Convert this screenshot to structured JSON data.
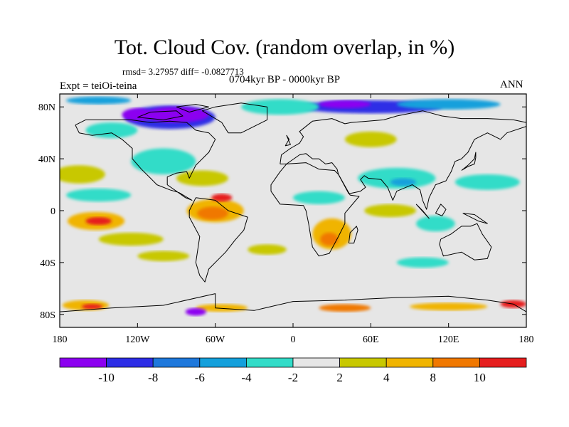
{
  "title": "Tot. Cloud Cov. (random overlap, in %)",
  "stats": "rmsd= 3.27957 diff= -0.0827713",
  "period": "0704kyr BP - 0000kyr BP",
  "experiment": "Expt = teiOi-teina",
  "season": "ANN",
  "map": {
    "lon_range": [
      -180,
      180
    ],
    "lat_range": [
      -90,
      90
    ],
    "x_ticks": [
      "180",
      "120W",
      "60W",
      "0",
      "60E",
      "120E",
      "180"
    ],
    "y_ticks": [
      "80N",
      "40N",
      "0",
      "40S",
      "80S"
    ],
    "background_color": "#e6e6e6",
    "coastline_color": "#000000"
  },
  "colorbar": {
    "labels": [
      "-10",
      "-8",
      "-6",
      "-4",
      "-2",
      "2",
      "4",
      "8",
      "10"
    ],
    "colors": [
      "#8c00f0",
      "#2d2de6",
      "#1e78dc",
      "#14a0dc",
      "#32dcc8",
      "#e6e6e6",
      "#c8c800",
      "#f0b400",
      "#f07800",
      "#e61e1e"
    ]
  },
  "anomaly_regions": [
    {
      "lon": -95,
      "lat": 72,
      "rx": 35,
      "ry": 9,
      "color": "#2d2de6"
    },
    {
      "lon": -90,
      "lat": 74,
      "rx": 25,
      "ry": 6,
      "color": "#8c00f0"
    },
    {
      "lon": -120,
      "lat": 74,
      "rx": 12,
      "ry": 5,
      "color": "#8c00f0"
    },
    {
      "lon": 60,
      "lat": 80,
      "rx": 55,
      "ry": 5,
      "color": "#2d2de6"
    },
    {
      "lon": 40,
      "lat": 82,
      "rx": 20,
      "ry": 3,
      "color": "#8c00f0"
    },
    {
      "lon": -10,
      "lat": 80,
      "rx": 30,
      "ry": 6,
      "color": "#32dcc8"
    },
    {
      "lon": 120,
      "lat": 82,
      "rx": 40,
      "ry": 4,
      "color": "#14a0dc"
    },
    {
      "lon": -150,
      "lat": 85,
      "rx": 25,
      "ry": 3,
      "color": "#14a0dc"
    },
    {
      "lon": -140,
      "lat": 62,
      "rx": 20,
      "ry": 6,
      "color": "#32dcc8"
    },
    {
      "lon": 60,
      "lat": 55,
      "rx": 20,
      "ry": 6,
      "color": "#c8c800"
    },
    {
      "lon": -165,
      "lat": 28,
      "rx": 20,
      "ry": 7,
      "color": "#c8c800"
    },
    {
      "lon": -150,
      "lat": 12,
      "rx": 25,
      "ry": 5,
      "color": "#32dcc8"
    },
    {
      "lon": -100,
      "lat": 38,
      "rx": 25,
      "ry": 10,
      "color": "#32dcc8"
    },
    {
      "lon": -70,
      "lat": 25,
      "rx": 20,
      "ry": 6,
      "color": "#c8c800"
    },
    {
      "lon": -60,
      "lat": 0,
      "rx": 22,
      "ry": 9,
      "color": "#f0b400"
    },
    {
      "lon": -62,
      "lat": -2,
      "rx": 12,
      "ry": 5,
      "color": "#f07800"
    },
    {
      "lon": -55,
      "lat": 10,
      "rx": 8,
      "ry": 3,
      "color": "#e61e1e"
    },
    {
      "lon": -152,
      "lat": -8,
      "rx": 22,
      "ry": 7,
      "color": "#f0b400"
    },
    {
      "lon": -150,
      "lat": -8,
      "rx": 10,
      "ry": 3,
      "color": "#e61e1e"
    },
    {
      "lon": -125,
      "lat": -22,
      "rx": 25,
      "ry": 5,
      "color": "#c8c800"
    },
    {
      "lon": 30,
      "lat": -18,
      "rx": 15,
      "ry": 12,
      "color": "#f0b400"
    },
    {
      "lon": 28,
      "lat": -22,
      "rx": 7,
      "ry": 5,
      "color": "#f07800"
    },
    {
      "lon": 20,
      "lat": 10,
      "rx": 20,
      "ry": 5,
      "color": "#32dcc8"
    },
    {
      "lon": 80,
      "lat": 25,
      "rx": 30,
      "ry": 8,
      "color": "#32dcc8"
    },
    {
      "lon": 85,
      "lat": 22,
      "rx": 10,
      "ry": 3,
      "color": "#14a0dc"
    },
    {
      "lon": 150,
      "lat": 22,
      "rx": 25,
      "ry": 6,
      "color": "#32dcc8"
    },
    {
      "lon": 75,
      "lat": 0,
      "rx": 20,
      "ry": 5,
      "color": "#c8c800"
    },
    {
      "lon": 110,
      "lat": -10,
      "rx": 15,
      "ry": 6,
      "color": "#32dcc8"
    },
    {
      "lon": -100,
      "lat": -35,
      "rx": 20,
      "ry": 4,
      "color": "#c8c800"
    },
    {
      "lon": -20,
      "lat": -30,
      "rx": 15,
      "ry": 4,
      "color": "#c8c800"
    },
    {
      "lon": 100,
      "lat": -40,
      "rx": 20,
      "ry": 4,
      "color": "#32dcc8"
    },
    {
      "lon": -160,
      "lat": -73,
      "rx": 18,
      "ry": 4,
      "color": "#f0b400"
    },
    {
      "lon": -155,
      "lat": -74,
      "rx": 8,
      "ry": 2,
      "color": "#e61e1e"
    },
    {
      "lon": -55,
      "lat": -75,
      "rx": 20,
      "ry": 3,
      "color": "#f0b400"
    },
    {
      "lon": -75,
      "lat": -78,
      "rx": 8,
      "ry": 3,
      "color": "#8c00f0"
    },
    {
      "lon": 40,
      "lat": -75,
      "rx": 20,
      "ry": 3,
      "color": "#f07800"
    },
    {
      "lon": 120,
      "lat": -74,
      "rx": 30,
      "ry": 3,
      "color": "#f0b400"
    },
    {
      "lon": 170,
      "lat": -72,
      "rx": 10,
      "ry": 3,
      "color": "#e61e1e"
    }
  ],
  "coastlines": [
    [
      [
        -168,
        66
      ],
      [
        -160,
        70
      ],
      [
        -140,
        70
      ],
      [
        -125,
        70
      ],
      [
        -110,
        68
      ],
      [
        -95,
        69
      ],
      [
        -82,
        68
      ],
      [
        -75,
        62
      ],
      [
        -65,
        60
      ],
      [
        -60,
        55
      ],
      [
        -65,
        45
      ],
      [
        -75,
        35
      ],
      [
        -80,
        25
      ],
      [
        -82,
        30
      ],
      [
        -90,
        29
      ],
      [
        -97,
        26
      ],
      [
        -97,
        20
      ],
      [
        -90,
        15
      ],
      [
        -83,
        10
      ],
      [
        -78,
        8
      ],
      [
        -88,
        14
      ],
      [
        -95,
        16
      ],
      [
        -105,
        20
      ],
      [
        -110,
        25
      ],
      [
        -117,
        32
      ],
      [
        -124,
        40
      ],
      [
        -124,
        48
      ],
      [
        -132,
        55
      ],
      [
        -140,
        60
      ],
      [
        -155,
        58
      ],
      [
        -165,
        60
      ],
      [
        -168,
        66
      ]
    ],
    [
      [
        -75,
        10
      ],
      [
        -60,
        8
      ],
      [
        -50,
        0
      ],
      [
        -35,
        -5
      ],
      [
        -38,
        -15
      ],
      [
        -45,
        -23
      ],
      [
        -52,
        -32
      ],
      [
        -58,
        -38
      ],
      [
        -65,
        -45
      ],
      [
        -68,
        -55
      ],
      [
        -72,
        -50
      ],
      [
        -75,
        -40
      ],
      [
        -72,
        -20
      ],
      [
        -80,
        -5
      ],
      [
        -80,
        0
      ],
      [
        -75,
        10
      ]
    ],
    [
      [
        -50,
        60
      ],
      [
        -40,
        60
      ],
      [
        -20,
        70
      ],
      [
        -20,
        80
      ],
      [
        -40,
        83
      ],
      [
        -60,
        80
      ],
      [
        -70,
        77
      ],
      [
        -55,
        68
      ],
      [
        -50,
        60
      ]
    ],
    [
      [
        -17,
        15
      ],
      [
        -10,
        5
      ],
      [
        8,
        4
      ],
      [
        10,
        0
      ],
      [
        12,
        -10
      ],
      [
        15,
        -28
      ],
      [
        20,
        -35
      ],
      [
        28,
        -33
      ],
      [
        35,
        -20
      ],
      [
        40,
        -10
      ],
      [
        40,
        -2
      ],
      [
        51,
        11
      ],
      [
        44,
        12
      ],
      [
        35,
        28
      ],
      [
        32,
        31
      ],
      [
        20,
        32
      ],
      [
        10,
        37
      ],
      [
        -5,
        36
      ],
      [
        -10,
        30
      ],
      [
        -17,
        20
      ],
      [
        -17,
        15
      ]
    ],
    [
      [
        -10,
        36
      ],
      [
        -9,
        43
      ],
      [
        -2,
        48
      ],
      [
        5,
        52
      ],
      [
        8,
        57
      ],
      [
        5,
        61
      ],
      [
        15,
        69
      ],
      [
        30,
        71
      ],
      [
        40,
        67
      ],
      [
        45,
        68
      ],
      [
        70,
        70
      ],
      [
        80,
        73
      ],
      [
        100,
        77
      ],
      [
        115,
        73
      ],
      [
        130,
        71
      ],
      [
        150,
        71
      ],
      [
        170,
        70
      ],
      [
        180,
        68
      ],
      [
        180,
        65
      ],
      [
        165,
        60
      ],
      [
        160,
        55
      ],
      [
        150,
        60
      ],
      [
        140,
        55
      ],
      [
        135,
        45
      ],
      [
        130,
        40
      ],
      [
        125,
        38
      ],
      [
        122,
        30
      ],
      [
        118,
        23
      ],
      [
        110,
        20
      ],
      [
        105,
        10
      ],
      [
        103,
        1
      ],
      [
        100,
        8
      ],
      [
        98,
        16
      ],
      [
        92,
        20
      ],
      [
        80,
        15
      ],
      [
        77,
        8
      ],
      [
        73,
        18
      ],
      [
        68,
        24
      ],
      [
        58,
        25
      ],
      [
        55,
        27
      ],
      [
        52,
        24
      ],
      [
        56,
        18
      ],
      [
        52,
        15
      ],
      [
        43,
        13
      ],
      [
        35,
        28
      ],
      [
        34,
        32
      ],
      [
        30,
        37
      ],
      [
        25,
        36
      ],
      [
        20,
        40
      ],
      [
        15,
        40
      ],
      [
        10,
        44
      ],
      [
        5,
        43
      ],
      [
        -5,
        36
      ],
      [
        -10,
        36
      ]
    ],
    [
      [
        114,
        -22
      ],
      [
        122,
        -18
      ],
      [
        130,
        -12
      ],
      [
        137,
        -12
      ],
      [
        142,
        -10
      ],
      [
        146,
        -18
      ],
      [
        153,
        -28
      ],
      [
        150,
        -37
      ],
      [
        140,
        -38
      ],
      [
        130,
        -32
      ],
      [
        116,
        -35
      ],
      [
        113,
        -26
      ],
      [
        114,
        -22
      ]
    ],
    [
      [
        -180,
        -78
      ],
      [
        -140,
        -75
      ],
      [
        -100,
        -73
      ],
      [
        -60,
        -64
      ],
      [
        -60,
        -75
      ],
      [
        -30,
        -77
      ],
      [
        0,
        -70
      ],
      [
        40,
        -69
      ],
      [
        80,
        -67
      ],
      [
        120,
        -66
      ],
      [
        150,
        -69
      ],
      [
        170,
        -72
      ],
      [
        180,
        -78
      ]
    ],
    [
      [
        -6,
        50
      ],
      [
        -3,
        55
      ],
      [
        -5,
        58
      ],
      [
        -2,
        51
      ],
      [
        -6,
        50
      ]
    ],
    [
      [
        130,
        31
      ],
      [
        135,
        34
      ],
      [
        140,
        36
      ],
      [
        141,
        41
      ],
      [
        141,
        45
      ],
      [
        140,
        40
      ],
      [
        135,
        35
      ],
      [
        130,
        31
      ]
    ],
    [
      [
        43,
        -25
      ],
      [
        47,
        -25
      ],
      [
        50,
        -15
      ],
      [
        49,
        -12
      ],
      [
        44,
        -17
      ],
      [
        43,
        -25
      ]
    ],
    [
      [
        95,
        5
      ],
      [
        105,
        -6
      ],
      [
        100,
        0
      ],
      [
        95,
        5
      ]
    ],
    [
      [
        110,
        -2
      ],
      [
        115,
        -4
      ],
      [
        118,
        1
      ],
      [
        114,
        5
      ],
      [
        110,
        -2
      ]
    ],
    [
      [
        131,
        -2
      ],
      [
        140,
        -3
      ],
      [
        150,
        -10
      ],
      [
        143,
        -8
      ],
      [
        131,
        -2
      ]
    ],
    [
      [
        -120,
        72
      ],
      [
        -110,
        76
      ],
      [
        -90,
        77
      ],
      [
        -85,
        73
      ],
      [
        -100,
        70
      ],
      [
        -120,
        72
      ]
    ],
    [
      [
        -90,
        80
      ],
      [
        -75,
        82
      ],
      [
        -65,
        80
      ],
      [
        -80,
        76
      ],
      [
        -90,
        80
      ]
    ]
  ]
}
